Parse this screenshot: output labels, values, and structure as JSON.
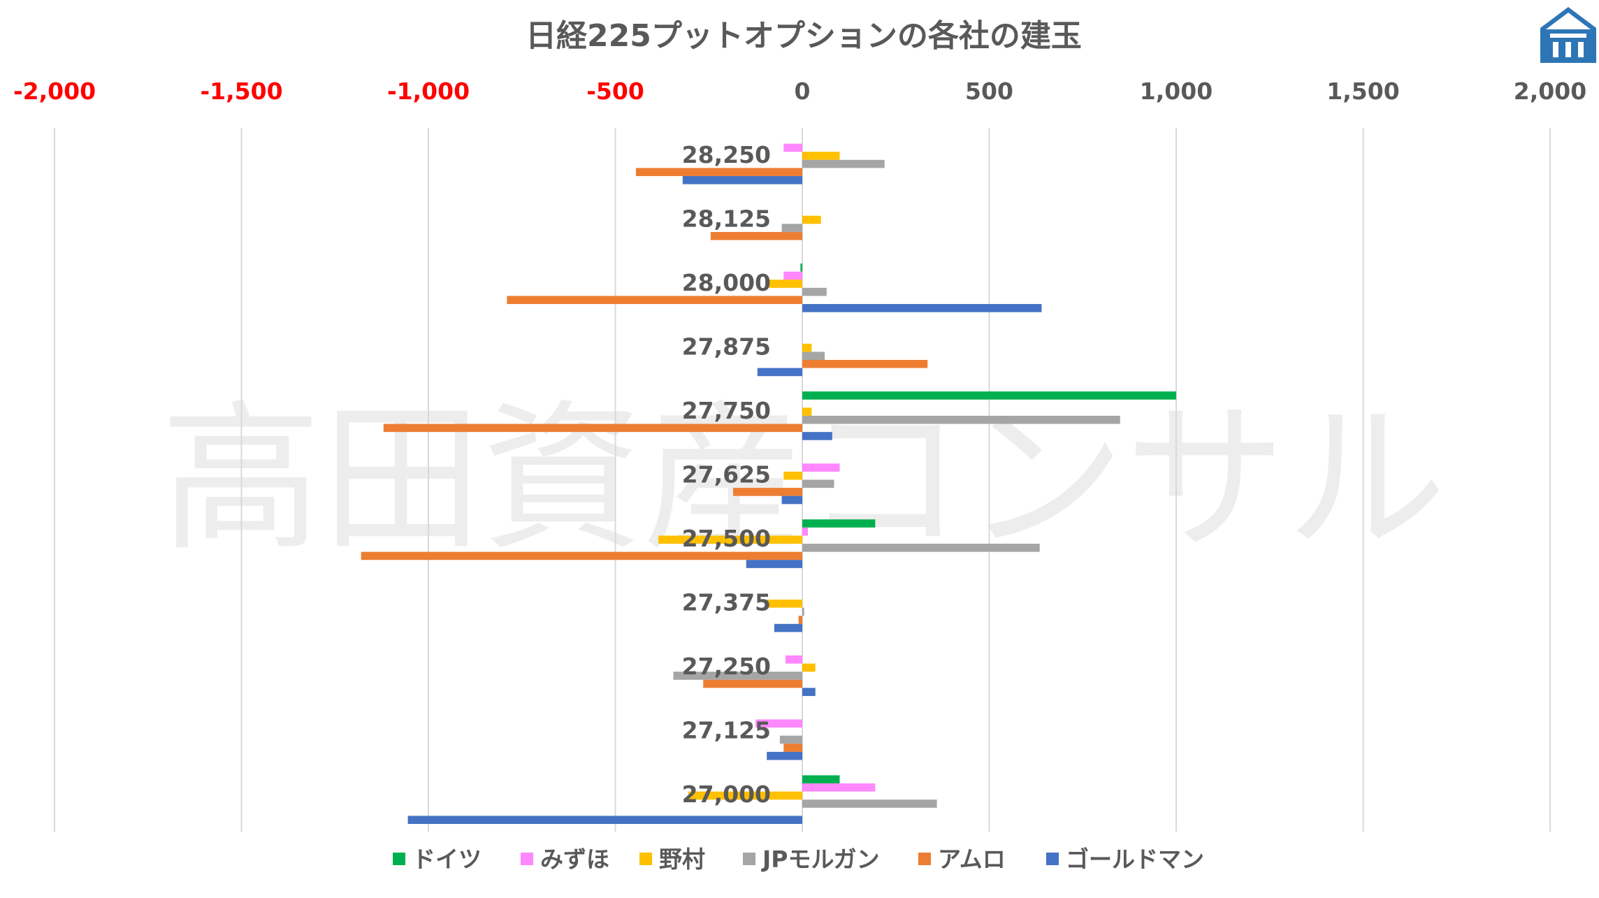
{
  "chart_data": {
    "type": "bar",
    "orientation": "horizontal",
    "title": "日経225プットオプションの各社の建玉",
    "watermark": "高田資産コンサル",
    "logo": "logo-icon",
    "xlim": [
      -2000,
      2000
    ],
    "x_ticks": [
      {
        "value": -2000,
        "label": "-2,000"
      },
      {
        "value": -1500,
        "label": "-1,500"
      },
      {
        "value": -1000,
        "label": "-1,000"
      },
      {
        "value": -500,
        "label": "-500"
      },
      {
        "value": 0,
        "label": "0"
      },
      {
        "value": 500,
        "label": "500"
      },
      {
        "value": 1000,
        "label": "1,000"
      },
      {
        "value": 1500,
        "label": "1,500"
      },
      {
        "value": 2000,
        "label": "2,000"
      }
    ],
    "negative_tick_color": "#ff0000",
    "positive_tick_color": "#595959",
    "grid": true,
    "legend_position": "bottom",
    "categories": [
      "28,250",
      "28,125",
      "28,000",
      "27,875",
      "27,750",
      "27,625",
      "27,500",
      "27,375",
      "27,250",
      "27,125",
      "27,000"
    ],
    "series": [
      {
        "name": "ドイツ",
        "color": "#00b050",
        "values": [
          0,
          0,
          -5,
          0,
          1000,
          0,
          195,
          0,
          0,
          0,
          100
        ]
      },
      {
        "name": "みずほ",
        "color": "#ff87ff",
        "values": [
          -50,
          0,
          -50,
          0,
          0,
          100,
          15,
          0,
          -45,
          -125,
          195
        ]
      },
      {
        "name": "野村",
        "color": "#ffc000",
        "values": [
          100,
          50,
          -95,
          25,
          25,
          -50,
          -385,
          -95,
          35,
          0,
          -305
        ]
      },
      {
        "name": "JPモルガン",
        "color": "#a5a5a5",
        "values": [
          220,
          -55,
          65,
          60,
          850,
          85,
          635,
          5,
          -345,
          -60,
          360
        ]
      },
      {
        "name": "アムロ",
        "color": "#ed7d31",
        "values": [
          -445,
          -245,
          -790,
          335,
          -1120,
          -185,
          -1180,
          -10,
          -265,
          -50,
          0
        ]
      },
      {
        "name": "ゴールドマン",
        "color": "#4472c4",
        "values": [
          -320,
          0,
          640,
          -120,
          80,
          -55,
          -150,
          -75,
          35,
          -95,
          -1055
        ]
      }
    ]
  }
}
